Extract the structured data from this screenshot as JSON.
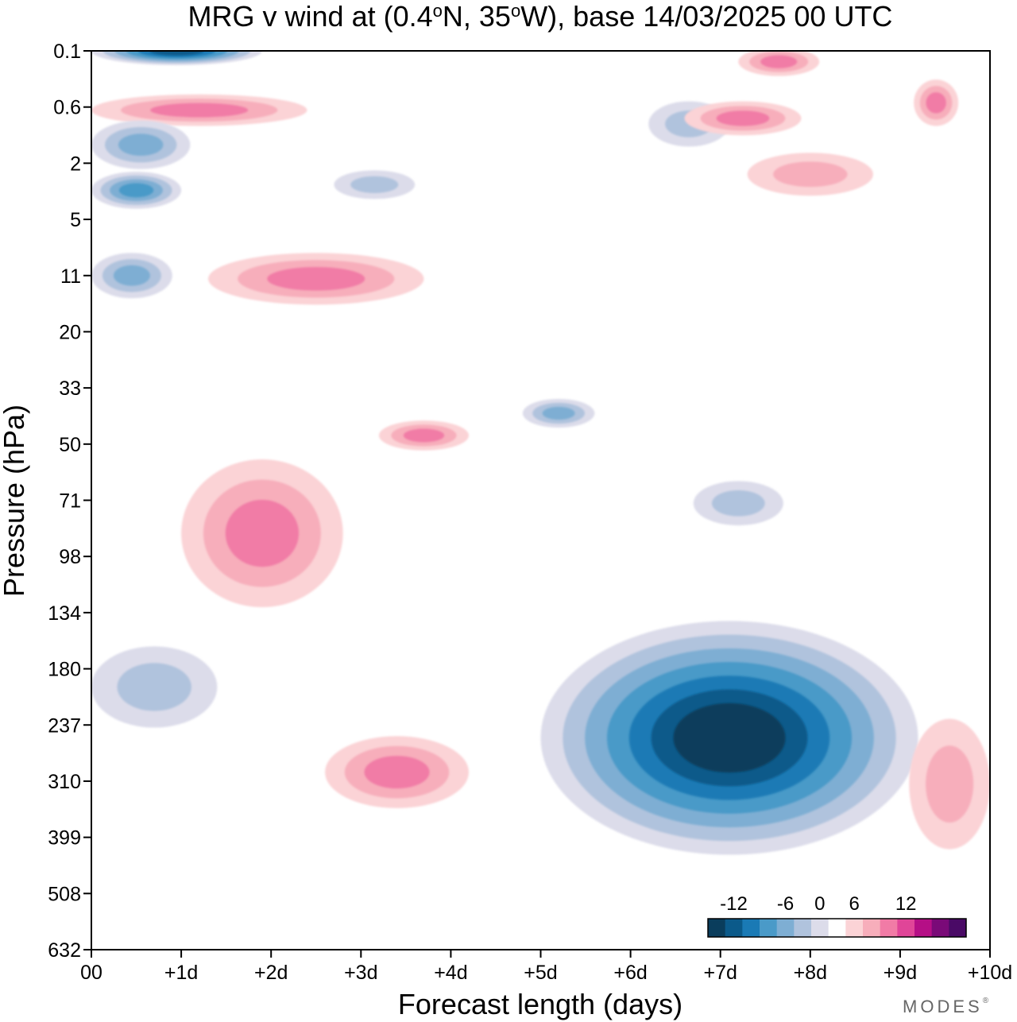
{
  "chart_data": {
    "type": "heatmap",
    "title_parts": [
      "MRG v wind at (0.4",
      "o",
      "N, 35",
      "o",
      "W),  base 14/03/2025  00 UTC"
    ],
    "xlabel": "Forecast length (days)",
    "ylabel": "Pressure (hPa)",
    "x_ticks": [
      "00",
      "+1d",
      "+2d",
      "+3d",
      "+4d",
      "+5d",
      "+6d",
      "+7d",
      "+8d",
      "+9d",
      "+10d"
    ],
    "xlim": [
      0,
      10
    ],
    "y_ticks": [
      "0.1",
      "0.6",
      "2",
      "5",
      "11",
      "20",
      "33",
      "50",
      "71",
      "98",
      "134",
      "180",
      "237",
      "310",
      "399",
      "508",
      "632"
    ],
    "y_axis_direction": "pressure increasing downward",
    "grid": false,
    "colorbar": {
      "labels": [
        "-12",
        "-6",
        "0",
        "6",
        "12"
      ],
      "label_bins": [
        1.5,
        4.5,
        6.5,
        8.5,
        11.5
      ],
      "placement": "bottom-right inside plot",
      "colors": [
        "#0a3d5c",
        "#0b5a8a",
        "#1a7ab5",
        "#4a9ac8",
        "#7eaed3",
        "#b0c3dd",
        "#dcdcea",
        "#ffffff",
        "#fbd3d6",
        "#f7aebb",
        "#f17ba6",
        "#e04598",
        "#b50f86",
        "#7a0a78",
        "#4a0a66"
      ]
    },
    "features": [
      {
        "sign": "negative",
        "peak_level": 1,
        "x": [
          0,
          1.9
        ],
        "y": [
          0.1,
          0.1
        ],
        "peak": -15
      },
      {
        "sign": "positive",
        "peak_level": 10,
        "x": [
          0,
          2.4
        ],
        "y": [
          0.4,
          0.9
        ],
        "peak": 9
      },
      {
        "sign": "negative",
        "peak_level": 4,
        "x": [
          0,
          1.1
        ],
        "y": [
          0.8,
          2.2
        ],
        "peak": -7
      },
      {
        "sign": "negative",
        "peak_level": 3,
        "x": [
          0,
          1
        ],
        "y": [
          2.3,
          4.2
        ],
        "peak": -9
      },
      {
        "sign": "negative",
        "peak_level": 4,
        "x": [
          0,
          0.9
        ],
        "y": [
          8,
          14
        ],
        "peak": -7
      },
      {
        "sign": "positive",
        "peak_level": 10,
        "x": [
          1.3,
          3.7
        ],
        "y": [
          8,
          15
        ],
        "peak": 9
      },
      {
        "sign": "negative",
        "peak_level": 5,
        "x": [
          2.7,
          3.6
        ],
        "y": [
          2.3,
          3.5
        ],
        "peak": -6
      },
      {
        "sign": "negative",
        "peak_level": 5,
        "x": [
          6.2,
          7.1
        ],
        "y": [
          0.5,
          1.4
        ],
        "peak": -6
      },
      {
        "sign": "positive",
        "peak_level": 10,
        "x": [
          7.2,
          8.1
        ],
        "y": [
          0.1,
          0.2
        ],
        "peak": 9
      },
      {
        "sign": "positive",
        "peak_level": 10,
        "x": [
          6.6,
          7.9
        ],
        "y": [
          0.5,
          1.1
        ],
        "peak": 9
      },
      {
        "sign": "positive",
        "peak_level": 10,
        "x": [
          9.2,
          9.6
        ],
        "y": [
          0.25,
          0.9
        ],
        "peak": 9
      },
      {
        "sign": "positive",
        "peak_level": 9,
        "x": [
          7.3,
          8.7
        ],
        "y": [
          1.6,
          3.4
        ],
        "peak": 7
      },
      {
        "sign": "negative",
        "peak_level": 4,
        "x": [
          4.8,
          5.6
        ],
        "y": [
          36,
          44
        ],
        "peak": -7
      },
      {
        "sign": "positive",
        "peak_level": 10,
        "x": [
          3.2,
          4.2
        ],
        "y": [
          42,
          52
        ],
        "peak": 9
      },
      {
        "sign": "positive",
        "peak_level": 10,
        "x": [
          1,
          2.8
        ],
        "y": [
          55,
          130
        ],
        "peak": 9
      },
      {
        "sign": "negative",
        "peak_level": 5,
        "x": [
          6.7,
          7.7
        ],
        "y": [
          63,
          82
        ],
        "peak": -6
      },
      {
        "sign": "negative",
        "peak_level": 5,
        "x": [
          0,
          1.4
        ],
        "y": [
          160,
          240
        ],
        "peak": -6
      },
      {
        "sign": "negative",
        "peak_level": 0,
        "x": [
          5,
          9.2
        ],
        "y": [
          140,
          430
        ],
        "peak": -20
      },
      {
        "sign": "positive",
        "peak_level": 10,
        "x": [
          2.6,
          4.2
        ],
        "y": [
          250,
          350
        ],
        "peak": 9
      },
      {
        "sign": "positive",
        "peak_level": 9,
        "x": [
          9.1,
          10
        ],
        "y": [
          230,
          420
        ],
        "peak": 7
      }
    ]
  },
  "brand": "MODES",
  "brand_mark": "®"
}
